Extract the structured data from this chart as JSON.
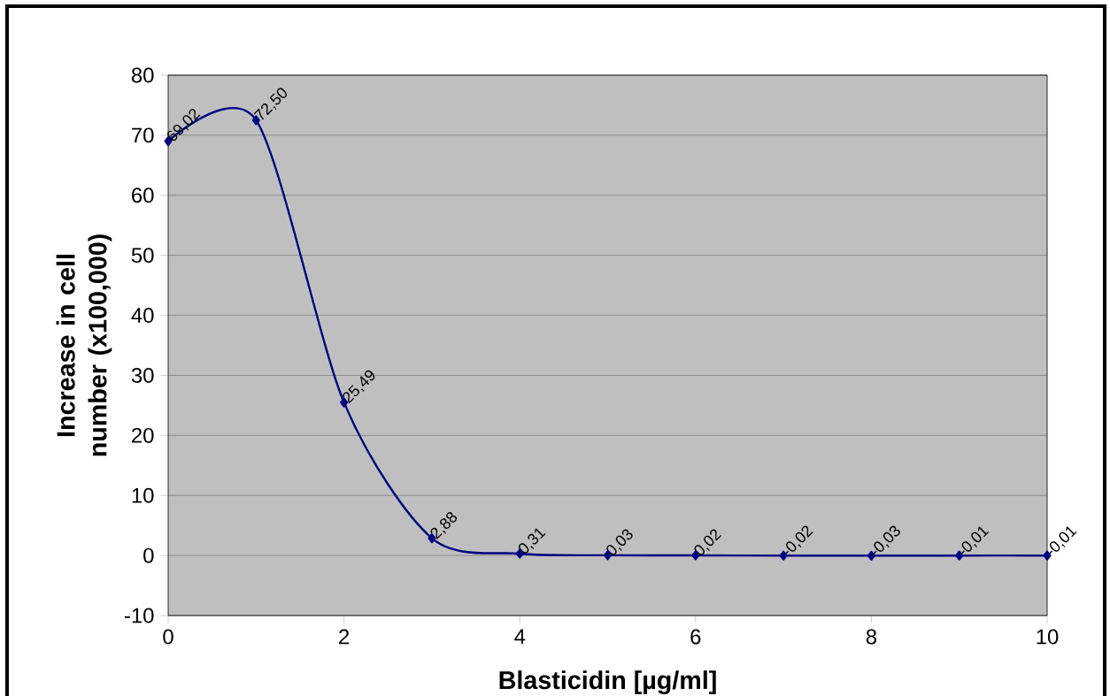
{
  "chart_data": {
    "type": "line",
    "xlabel": "Blasticidin [µg/ml]",
    "ylabel": "Increase in cell number (x100,000)",
    "x": [
      0,
      1,
      2,
      3,
      4,
      5,
      6,
      7,
      8,
      9,
      10
    ],
    "series": [
      {
        "color": "#000080",
        "values": [
          69.02,
          72.5,
          25.49,
          2.88,
          0.31,
          0.03,
          0.02,
          -0.02,
          -0.03,
          -0.01,
          -0.01
        ],
        "value_labels": [
          "69,02",
          "72,50",
          "25,49",
          "2,88",
          "0,31",
          "0,03",
          "0,02",
          "-0,02",
          "-0,03",
          "-0,01",
          "-0,01"
        ]
      }
    ],
    "xlim": [
      0,
      10
    ],
    "xticks": [
      0,
      2,
      4,
      6,
      8,
      10
    ],
    "ylim": [
      -10,
      80
    ],
    "yticks": [
      -10,
      0,
      10,
      20,
      30,
      40,
      50,
      60,
      70,
      80
    ],
    "grid": "y",
    "marker": "diamond",
    "line_style": "solid"
  }
}
